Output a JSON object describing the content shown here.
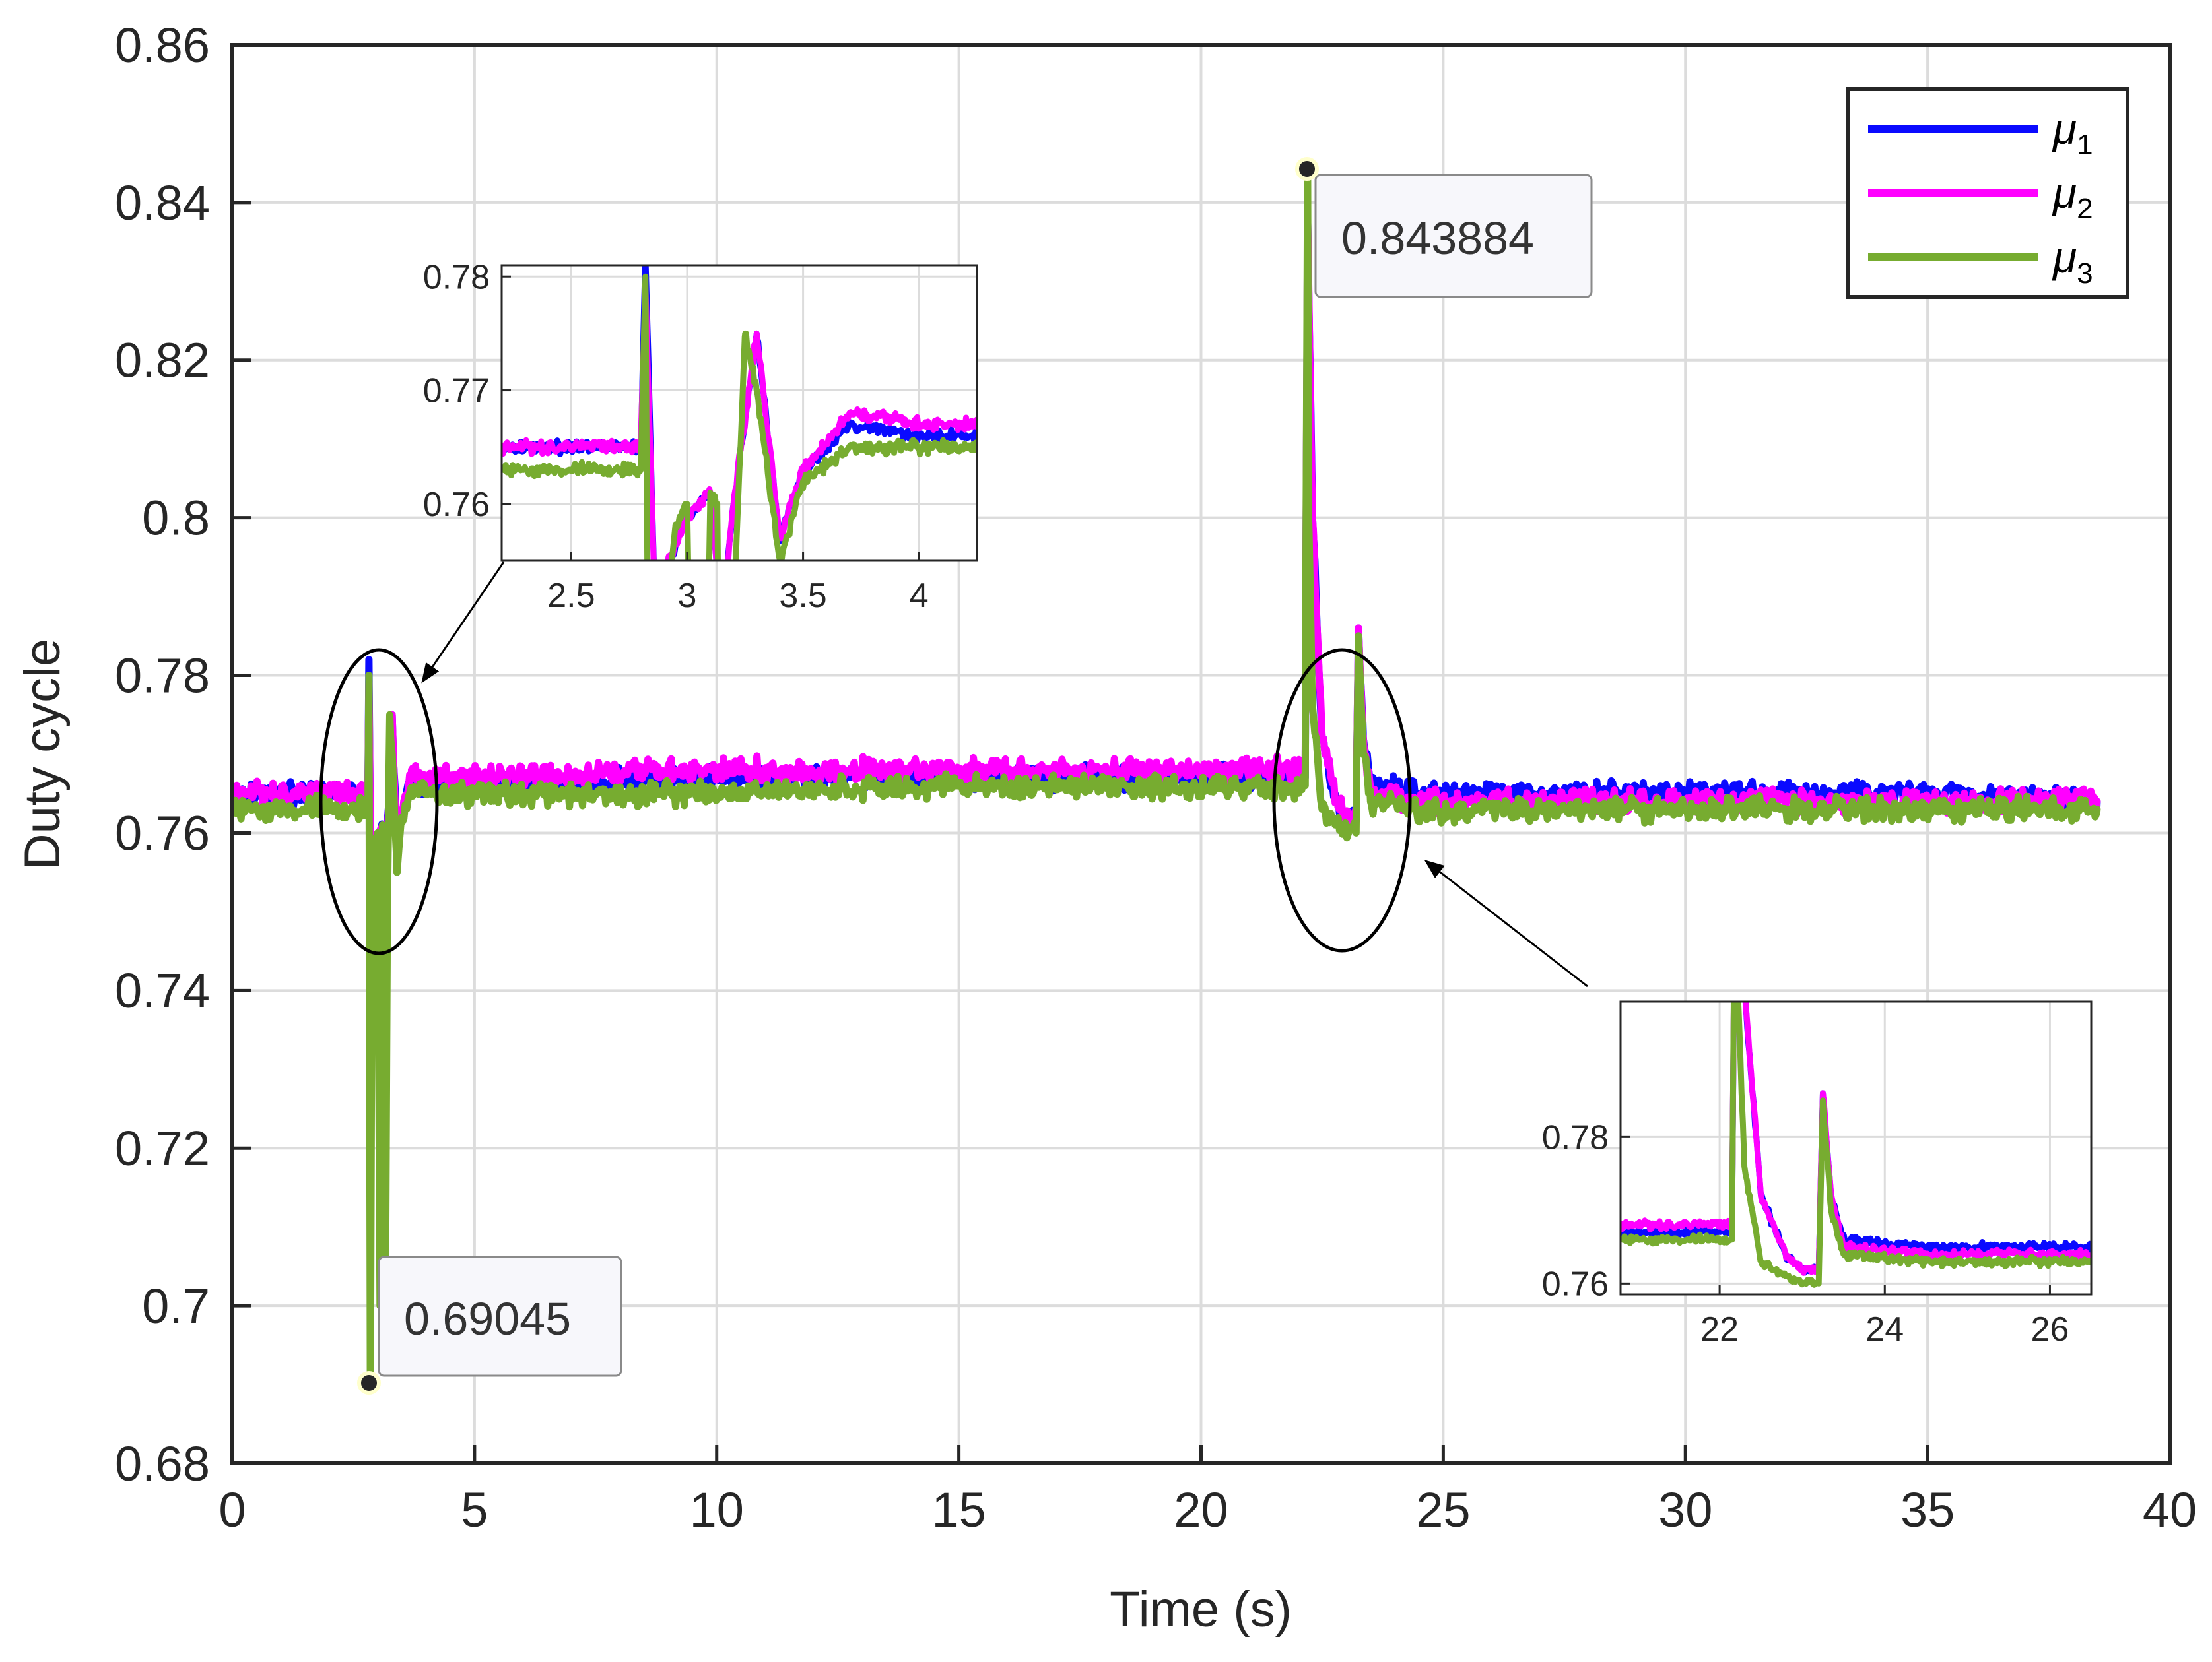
{
  "chart_data": {
    "type": "line",
    "title": "",
    "xlabel": "Time (s)",
    "ylabel": "Duty cycle",
    "xlim": [
      0,
      40
    ],
    "ylim": [
      0.68,
      0.86
    ],
    "xticks": [
      0,
      5,
      10,
      15,
      20,
      25,
      30,
      35,
      40
    ],
    "xtick_labels": [
      "0",
      "5",
      "10",
      "15",
      "20",
      "25",
      "30",
      "35",
      "40"
    ],
    "yticks": [
      0.68,
      0.7,
      0.72,
      0.74,
      0.76,
      0.78,
      0.8,
      0.82,
      0.84,
      0.86
    ],
    "ytick_labels": [
      "0.68",
      "0.7",
      "0.72",
      "0.74",
      "0.76",
      "0.78",
      "0.8",
      "0.82",
      "0.84",
      "0.86"
    ],
    "grid": true,
    "legend_position": "top-right",
    "colors": {
      "mu1": "#0a0aff",
      "mu2": "#ff00ff",
      "mu3": "#77ac30"
    },
    "series": [
      {
        "name": "μ1",
        "base": "μ",
        "sub": "1",
        "color": "#0a0aff",
        "x": [
          0,
          2.0,
          2.8,
          2.82,
          2.86,
          3.0,
          3.1,
          3.15,
          3.2,
          3.3,
          3.4,
          3.5,
          3.7,
          4.0,
          5,
          10,
          15,
          20,
          21.9,
          22.15,
          22.2,
          22.3,
          22.5,
          22.8,
          23.0,
          23.2,
          23.25,
          23.35,
          23.5,
          24.5,
          30,
          35,
          38.5
        ],
        "y": [
          0.765,
          0.765,
          0.765,
          0.782,
          0.752,
          0.759,
          0.761,
          0.75,
          0.76,
          0.775,
          0.757,
          0.763,
          0.767,
          0.766,
          0.766,
          0.767,
          0.767,
          0.767,
          0.767,
          0.767,
          0.838,
          0.8,
          0.772,
          0.764,
          0.762,
          0.762,
          0.786,
          0.772,
          0.766,
          0.765,
          0.765,
          0.765,
          0.764
        ]
      },
      {
        "name": "μ2",
        "base": "μ",
        "sub": "2",
        "color": "#ff00ff",
        "x": [
          0,
          2.0,
          2.8,
          2.82,
          2.86,
          3.0,
          3.1,
          3.15,
          3.2,
          3.3,
          3.4,
          3.5,
          3.7,
          4.0,
          5,
          10,
          15,
          20,
          21.9,
          22.15,
          22.2,
          22.3,
          22.5,
          22.8,
          23.0,
          23.2,
          23.25,
          23.35,
          23.5,
          24.5,
          30,
          35,
          38.5
        ],
        "y": [
          0.765,
          0.765,
          0.765,
          0.779,
          0.752,
          0.759,
          0.761,
          0.75,
          0.76,
          0.775,
          0.757,
          0.763,
          0.768,
          0.767,
          0.767,
          0.768,
          0.768,
          0.768,
          0.768,
          0.768,
          0.838,
          0.8,
          0.772,
          0.764,
          0.762,
          0.762,
          0.786,
          0.772,
          0.765,
          0.764,
          0.764,
          0.764,
          0.764
        ]
      },
      {
        "name": "μ3",
        "base": "μ",
        "sub": "3",
        "color": "#77ac30",
        "x": [
          0,
          2.0,
          2.8,
          2.82,
          2.85,
          2.88,
          2.95,
          3.0,
          3.05,
          3.1,
          3.13,
          3.16,
          3.2,
          3.25,
          3.3,
          3.4,
          3.5,
          3.7,
          4.0,
          5,
          10,
          15,
          20,
          21.9,
          22.15,
          22.2,
          22.22,
          22.3,
          22.5,
          22.8,
          23.0,
          23.2,
          23.25,
          23.35,
          23.5,
          24.5,
          30,
          35,
          38.5
        ],
        "y": [
          0.763,
          0.763,
          0.763,
          0.78,
          0.69,
          0.745,
          0.758,
          0.76,
          0.7,
          0.761,
          0.76,
          0.7,
          0.75,
          0.775,
          0.77,
          0.755,
          0.762,
          0.765,
          0.765,
          0.765,
          0.765,
          0.766,
          0.766,
          0.766,
          0.766,
          0.843884,
          0.8,
          0.776,
          0.763,
          0.761,
          0.76,
          0.76,
          0.785,
          0.77,
          0.764,
          0.763,
          0.763,
          0.763,
          0.763
        ]
      }
    ],
    "annotations": [
      {
        "text": "0.69045",
        "x": 2.82,
        "y": 0.69045
      },
      {
        "text": "0.843884",
        "x": 22.2,
        "y": 0.843884
      }
    ],
    "insets": [
      {
        "xlim": [
          2.2,
          4.25
        ],
        "ylim": [
          0.755,
          0.781
        ],
        "xticks": [
          2.5,
          3,
          3.5,
          4
        ],
        "xtick_labels": [
          "2.5",
          "3",
          "3.5",
          "4"
        ],
        "yticks": [
          0.76,
          0.77,
          0.78
        ],
        "ytick_labels": [
          "0.76",
          "0.77",
          "0.78"
        ],
        "zoom_center": [
          3.05,
          0.7645
        ]
      },
      {
        "xlim": [
          20.8,
          26.5
        ],
        "ylim": [
          0.7585,
          0.7985
        ],
        "xticks": [
          22,
          24,
          26
        ],
        "xtick_labels": [
          "22",
          "24",
          "26"
        ],
        "yticks": [
          0.76,
          0.78
        ],
        "ytick_labels": [
          "0.76",
          "0.78"
        ],
        "zoom_center": [
          23.0,
          0.7735
        ]
      }
    ]
  }
}
